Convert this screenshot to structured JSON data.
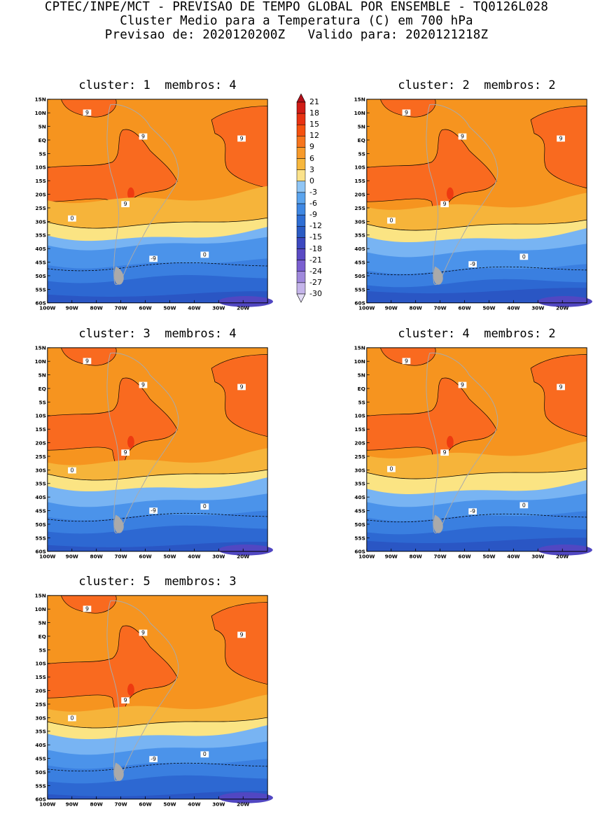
{
  "header": {
    "line1": "CPTEC/INPE/MCT - PREVISAO DE TEMPO GLOBAL POR ENSEMBLE - TQ0126L028",
    "line2": "Cluster Medio para a Temperatura (C) em 700 hPa",
    "line3": "Previsao de: 2020120200Z   Valido para: 2020121218Z"
  },
  "panels": [
    {
      "cluster_label": "cluster: 1",
      "membros_label": "membros: 4"
    },
    {
      "cluster_label": "cluster: 2",
      "membros_label": "membros: 2"
    },
    {
      "cluster_label": "cluster: 3",
      "membros_label": "membros: 4"
    },
    {
      "cluster_label": "cluster: 4",
      "membros_label": "membros: 2"
    },
    {
      "cluster_label": "cluster: 5",
      "membros_label": "membros: 3"
    }
  ],
  "lat_labels": [
    "15N",
    "10N",
    "5N",
    "EQ",
    "5S",
    "10S",
    "15S",
    "20S",
    "25S",
    "30S",
    "35S",
    "40S",
    "45S",
    "50S",
    "55S",
    "60S"
  ],
  "lon_labels": [
    "100W",
    "90W",
    "80W",
    "70W",
    "60W",
    "50W",
    "40W",
    "30W",
    "20W"
  ],
  "contour_labels": {
    "warm": "9",
    "zero": "0",
    "cold": "-9"
  },
  "colorbar": {
    "levels": [
      "21",
      "18",
      "15",
      "12",
      "9",
      "6",
      "3",
      "0",
      "-3",
      "-6",
      "-9",
      "-12",
      "-15",
      "-18",
      "-21",
      "-24",
      "-27",
      "-30"
    ],
    "colors": [
      "#b3101a",
      "#d01c16",
      "#e83212",
      "#f5510f",
      "#f7751d",
      "#f79a2a",
      "#f7b73c",
      "#fbe28a",
      "#8fc5f5",
      "#5aa4ee",
      "#3e87e3",
      "#2e6ed4",
      "#2a5bc4",
      "#3c48c0",
      "#5a4ac4",
      "#7a5fd0",
      "#9f88dc",
      "#c4b4ea",
      "#e2dcf5"
    ]
  },
  "map_colors": {
    "c9": "#f96a1f",
    "c6": "#f6941f",
    "c3": "#f6b43a",
    "c0": "#fbe483",
    "cm3": "#78b4f3",
    "cm6": "#4b93ea",
    "cm9": "#3a7fe0",
    "cm12": "#2d68d2",
    "cm15": "#2a56c4",
    "cm18": "#5147c2",
    "hot": "#ee3a10",
    "land": "#aaaaaa"
  }
}
